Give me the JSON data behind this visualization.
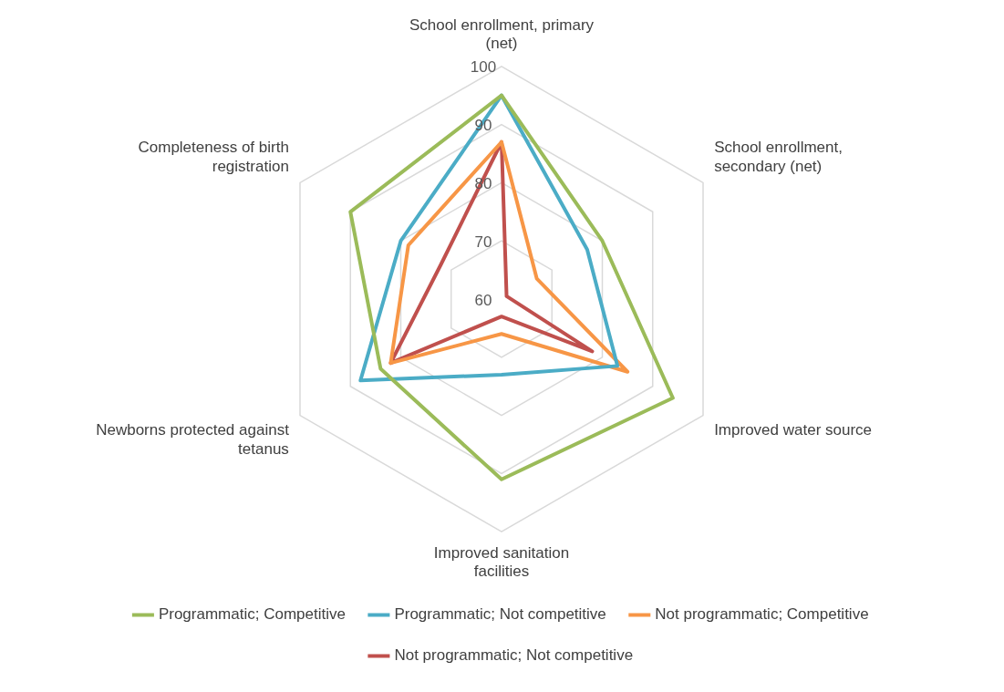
{
  "chart_data": {
    "type": "radar",
    "categories": [
      "School enrollment, primary (net)",
      "School enrollment, secondary (net)",
      "Improved water source",
      "Improved sanitation facilities",
      "Newborns protected against tetanus",
      "Completeness of birth registration"
    ],
    "series": [
      {
        "name": "Programmatic; Competitive",
        "color": "#9bbb59",
        "values": [
          95,
          80,
          94,
          91,
          84,
          90
        ]
      },
      {
        "name": "Programmatic; Not competitive",
        "color": "#4bacc6",
        "values": [
          95,
          77,
          83,
          73,
          88,
          80
        ]
      },
      {
        "name": "Not programmatic; Competitive",
        "color": "#f79646",
        "values": [
          87,
          67,
          85,
          66,
          82,
          78.5
        ]
      },
      {
        "name": "Not programmatic; Not competitive",
        "color": "#c0504d",
        "values": [
          87,
          61,
          78,
          63,
          82,
          72
        ]
      }
    ],
    "ylim": [
      60,
      100
    ],
    "yticks": [
      60,
      70,
      80,
      90,
      100
    ],
    "grid": true,
    "legend": "bottom",
    "marker": "none",
    "line_style": "solid"
  }
}
